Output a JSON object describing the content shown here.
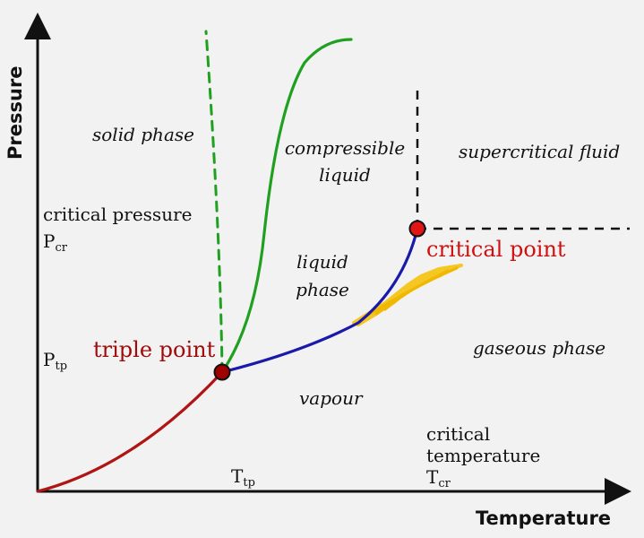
{
  "axes": {
    "x_label": "Temperature",
    "y_label": "Pressure"
  },
  "regions": {
    "solid_phase": "solid phase",
    "compressible_liquid_line1": "compressible",
    "compressible_liquid_line2": "liquid",
    "supercritical_fluid": "supercritical fluid",
    "liquid_phase_line1": "liquid",
    "liquid_phase_line2": "phase",
    "gaseous_phase": "gaseous phase",
    "vapour": "vapour"
  },
  "points": {
    "triple_point": "triple point",
    "critical_point": "critical point"
  },
  "labels": {
    "critical_pressure": "critical pressure",
    "p_cr_main": "P",
    "p_cr_sub": "cr",
    "p_tp_main": "P",
    "p_tp_sub": "tp",
    "t_tp_main": "T",
    "t_tp_sub": "tp",
    "critical_temperature_line1": "critical",
    "critical_temperature_line2": "temperature",
    "t_cr_main": "T",
    "t_cr_sub": "cr"
  },
  "colors": {
    "background": "#f2f2f2",
    "axis": "#111111",
    "sublimation_curve": "#b01515",
    "vaporization_curve": "#1a1aaa",
    "fusion_curve": "#20a020",
    "critical_label": "#d01010",
    "triple_label": "#a00a0a",
    "highlight": "#f5c518"
  }
}
